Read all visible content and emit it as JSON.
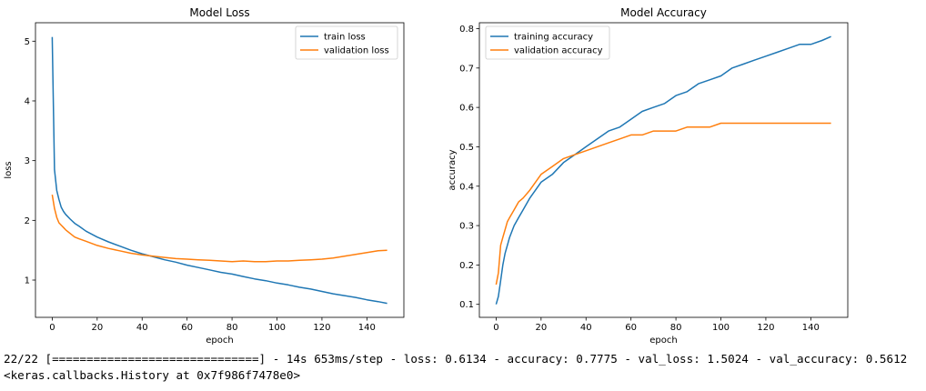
{
  "chart_data": [
    {
      "type": "line",
      "title": "Model Loss",
      "xlabel": "epoch",
      "ylabel": "loss",
      "xlim": [
        -7.45,
        156.45
      ],
      "ylim": [
        0.376,
        5.309
      ],
      "xticks": [
        0,
        20,
        40,
        60,
        80,
        100,
        120,
        140
      ],
      "yticks": [
        1,
        2,
        3,
        4,
        5
      ],
      "grid": false,
      "legend_position": "upper right",
      "x": [
        0,
        1,
        2,
        3,
        4,
        5,
        6,
        8,
        10,
        12,
        15,
        20,
        25,
        30,
        35,
        40,
        45,
        50,
        55,
        60,
        65,
        70,
        75,
        80,
        85,
        90,
        95,
        100,
        105,
        110,
        115,
        120,
        125,
        130,
        135,
        140,
        145,
        149
      ],
      "series": [
        {
          "name": "train loss",
          "color": "#1f77b4",
          "values": [
            5.07,
            2.85,
            2.5,
            2.35,
            2.22,
            2.15,
            2.1,
            2.02,
            1.95,
            1.9,
            1.82,
            1.72,
            1.64,
            1.57,
            1.5,
            1.44,
            1.39,
            1.34,
            1.3,
            1.25,
            1.21,
            1.17,
            1.13,
            1.1,
            1.06,
            1.02,
            0.99,
            0.95,
            0.92,
            0.88,
            0.85,
            0.81,
            0.77,
            0.74,
            0.71,
            0.67,
            0.64,
            0.61
          ]
        },
        {
          "name": "validation loss",
          "color": "#ff7f0e",
          "values": [
            2.43,
            2.2,
            2.05,
            1.96,
            1.92,
            1.88,
            1.84,
            1.78,
            1.72,
            1.69,
            1.65,
            1.58,
            1.53,
            1.49,
            1.45,
            1.42,
            1.4,
            1.38,
            1.36,
            1.35,
            1.34,
            1.33,
            1.32,
            1.31,
            1.32,
            1.31,
            1.31,
            1.32,
            1.32,
            1.33,
            1.34,
            1.35,
            1.37,
            1.4,
            1.43,
            1.46,
            1.49,
            1.5
          ]
        }
      ]
    },
    {
      "type": "line",
      "title": "Model Accuracy",
      "xlabel": "epoch",
      "ylabel": "accuracy",
      "xlim": [
        -7.45,
        156.45
      ],
      "ylim": [
        0.067,
        0.815
      ],
      "xticks": [
        0,
        20,
        40,
        60,
        80,
        100,
        120,
        140
      ],
      "yticks": [
        0.1,
        0.2,
        0.3,
        0.4,
        0.5,
        0.6,
        0.7,
        0.8
      ],
      "grid": false,
      "legend_position": "upper left",
      "x": [
        0,
        1,
        2,
        3,
        4,
        5,
        6,
        8,
        10,
        12,
        15,
        20,
        25,
        30,
        35,
        40,
        45,
        50,
        55,
        60,
        65,
        70,
        75,
        80,
        85,
        90,
        95,
        100,
        105,
        110,
        115,
        120,
        125,
        130,
        135,
        140,
        145,
        149
      ],
      "series": [
        {
          "name": "training accuracy",
          "color": "#1f77b4",
          "values": [
            0.1,
            0.12,
            0.16,
            0.2,
            0.23,
            0.25,
            0.27,
            0.3,
            0.32,
            0.34,
            0.37,
            0.41,
            0.43,
            0.46,
            0.48,
            0.5,
            0.52,
            0.54,
            0.55,
            0.57,
            0.59,
            0.6,
            0.61,
            0.63,
            0.64,
            0.66,
            0.67,
            0.68,
            0.7,
            0.71,
            0.72,
            0.73,
            0.74,
            0.75,
            0.76,
            0.76,
            0.77,
            0.78
          ]
        },
        {
          "name": "validation accuracy",
          "color": "#ff7f0e",
          "values": [
            0.15,
            0.18,
            0.25,
            0.27,
            0.29,
            0.31,
            0.32,
            0.34,
            0.36,
            0.37,
            0.39,
            0.43,
            0.45,
            0.47,
            0.48,
            0.49,
            0.5,
            0.51,
            0.52,
            0.53,
            0.53,
            0.54,
            0.54,
            0.54,
            0.55,
            0.55,
            0.55,
            0.56,
            0.56,
            0.56,
            0.56,
            0.56,
            0.56,
            0.56,
            0.56,
            0.56,
            0.56,
            0.56
          ]
        }
      ]
    }
  ],
  "console": {
    "log_line": "22/22 [==============================] - 14s 653ms/step - loss: 0.6134 - accuracy: 0.7775 - val_loss: 1.5024 - val_accuracy: 0.5612",
    "repr_line": "<keras.callbacks.History at 0x7f986f7478e0>"
  }
}
